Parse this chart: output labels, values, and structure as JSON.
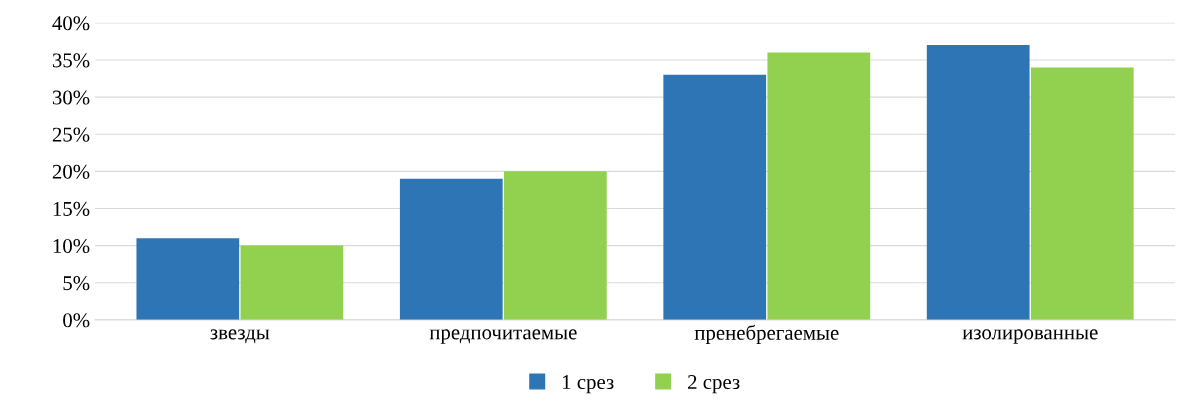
{
  "chart_data": {
    "type": "bar",
    "categories": [
      "звезды",
      "предпочитаемые",
      "пренебрегаемые",
      "изолированные"
    ],
    "series": [
      {
        "name": "1 срез",
        "color": "#2e75b6",
        "values": [
          11,
          19,
          33,
          37
        ]
      },
      {
        "name": "2 срез",
        "color": "#92d050",
        "values": [
          10,
          20,
          36,
          34
        ]
      }
    ],
    "ylim": [
      0,
      40
    ],
    "yticks": [
      {
        "value": 0,
        "label": "0%"
      },
      {
        "value": 5,
        "label": "5%"
      },
      {
        "value": 10,
        "label": "10%"
      },
      {
        "value": 15,
        "label": "15%"
      },
      {
        "value": 20,
        "label": "20%"
      },
      {
        "value": 25,
        "label": "25%"
      },
      {
        "value": 30,
        "label": "30%"
      },
      {
        "value": 35,
        "label": "35%"
      },
      {
        "value": 40,
        "label": "40%"
      }
    ],
    "grid": "y",
    "legend": "bottom"
  }
}
